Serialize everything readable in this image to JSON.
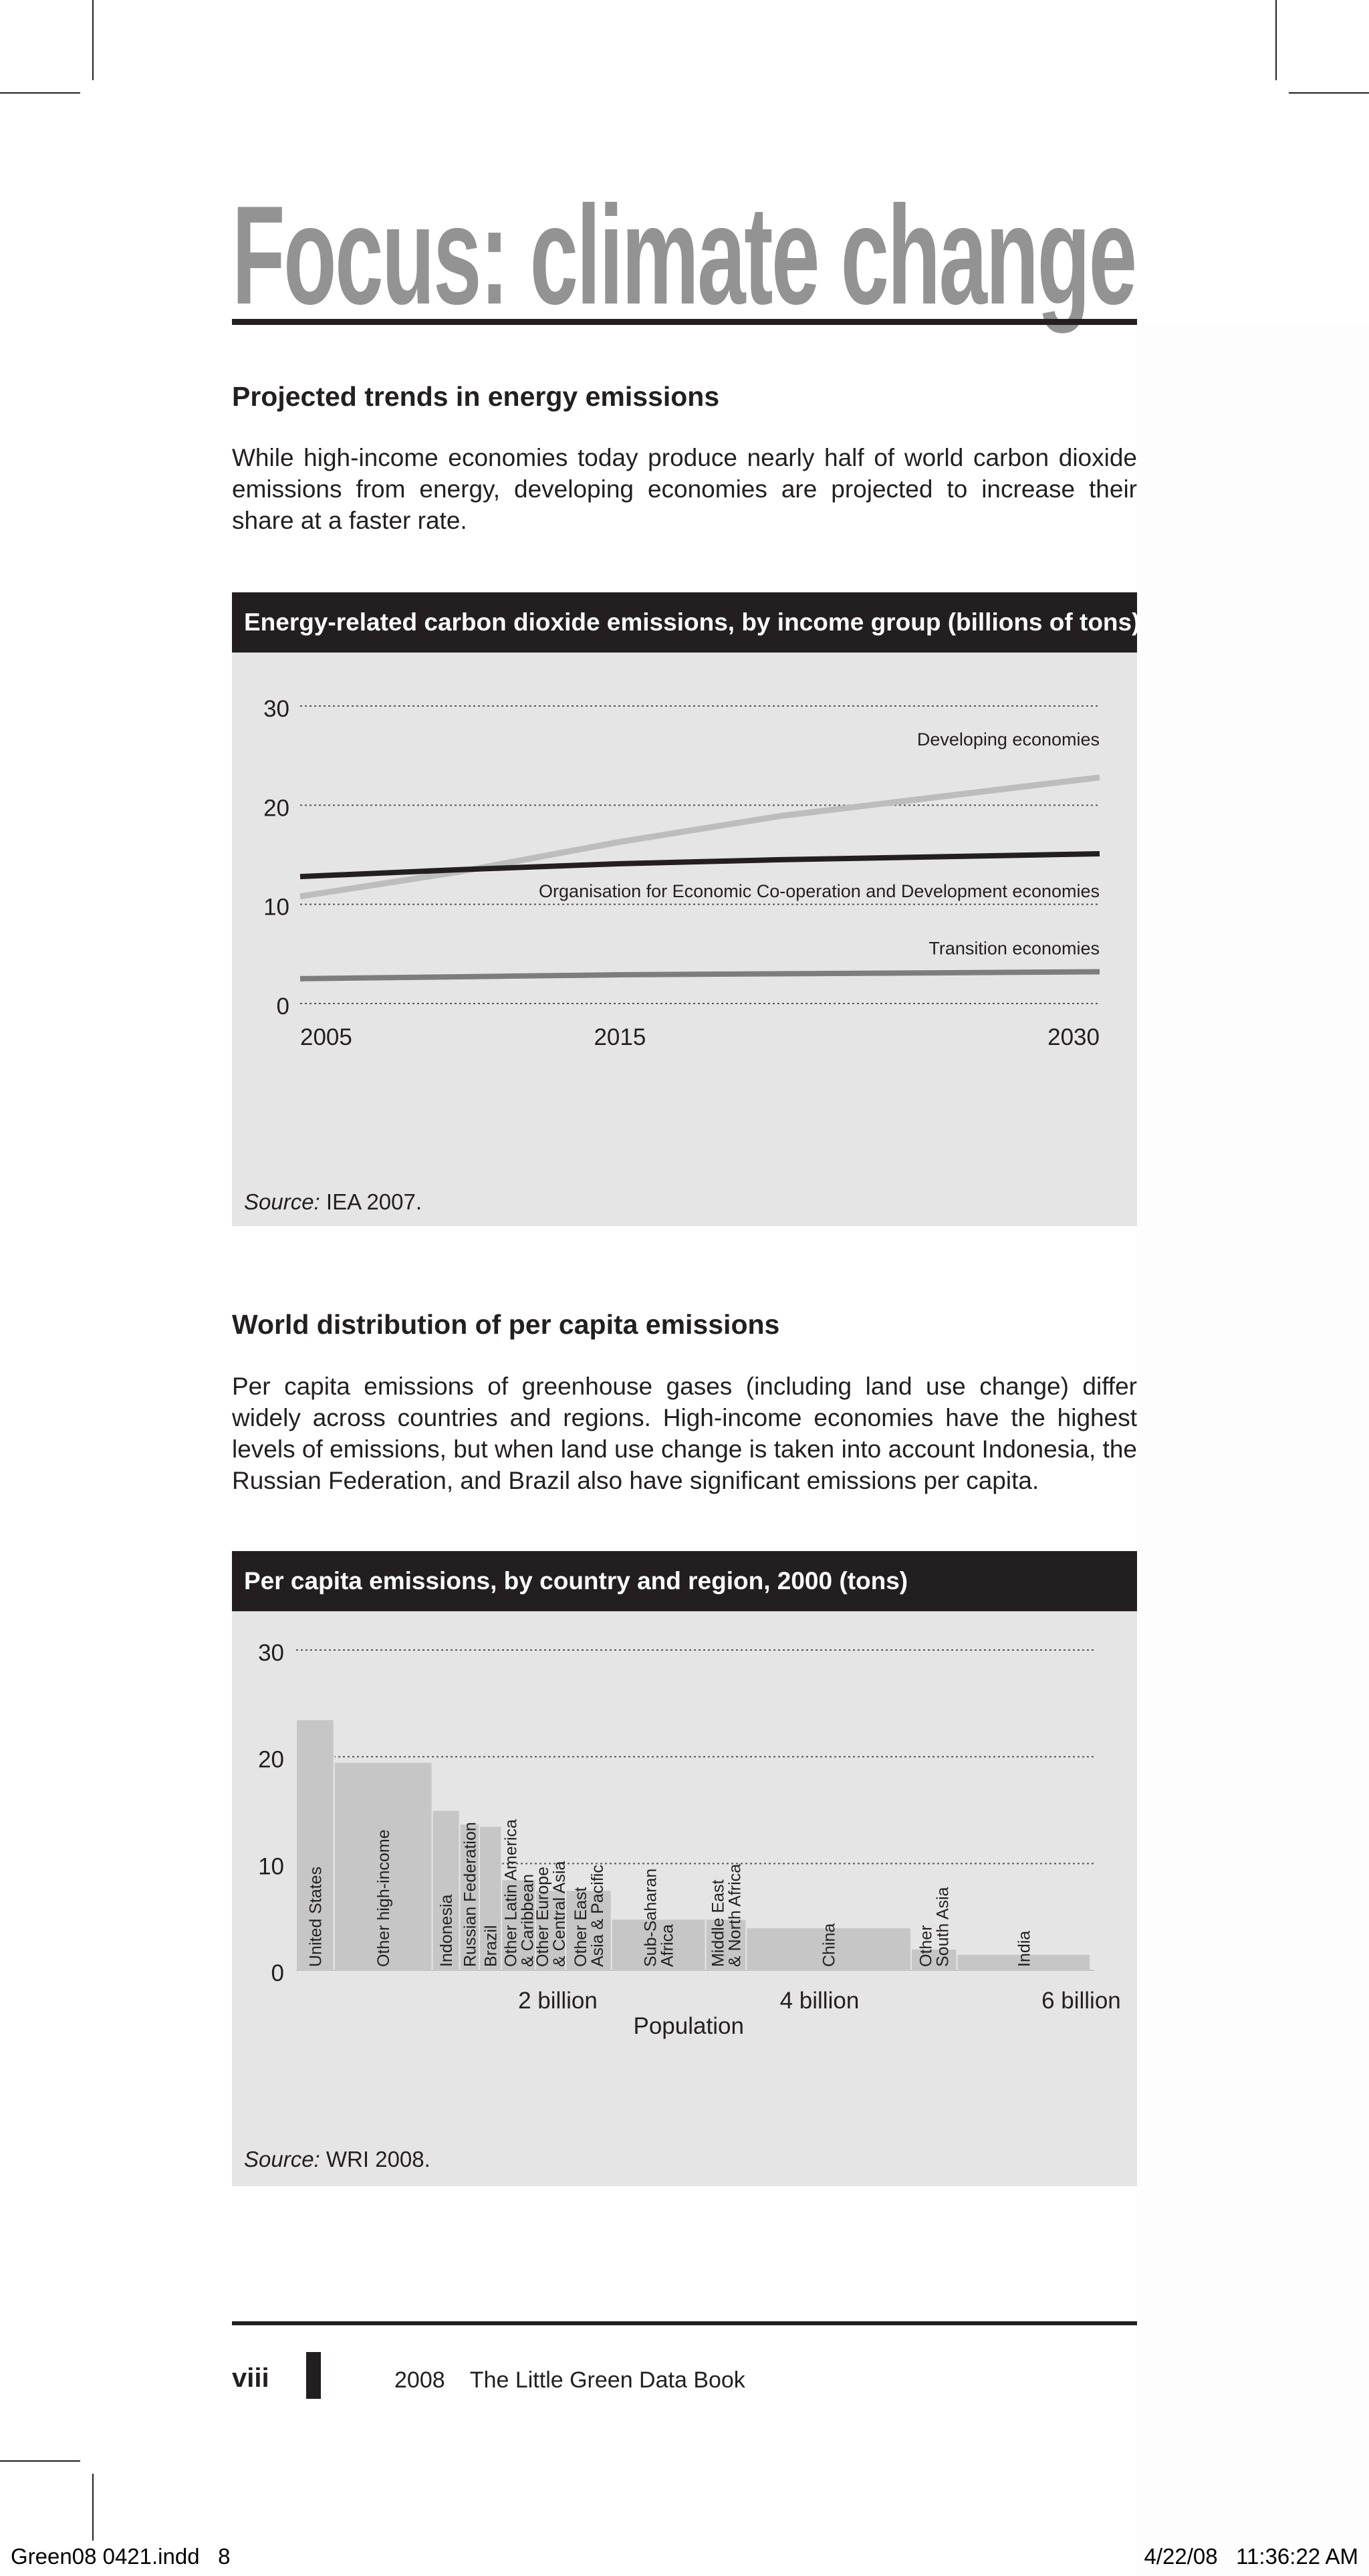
{
  "page": {
    "title": "Focus: climate change",
    "section1": {
      "heading": "Projected trends in energy emissions",
      "body": "While high-income economies today produce nearly half of world carbon dioxide emissions from energy, developing economies are projected to increase their share at a faster rate."
    },
    "section2": {
      "heading": "World distribution of per capita emissions",
      "body": "Per capita emissions of greenhouse gases (including land use change) differ widely across countries and regions. High-income economies have the highest levels of emissions, but when land use change is taken into account Indonesia, the Russian Federation, and Brazil also have significant emissions per capita."
    },
    "footer": {
      "folio": "viii",
      "book": "2008    The Little Green Data Book"
    },
    "slug": {
      "left": "Green08 0421.indd   8",
      "right": "4/22/08   11:36:22 AM"
    }
  },
  "chart_data": [
    {
      "type": "line",
      "title": "Energy-related carbon dioxide emissions, by income group (billions of tons)",
      "x": [
        2005,
        2010,
        2015,
        2020,
        2030
      ],
      "xticks": [
        "2005",
        "2015",
        "2030"
      ],
      "yticks": [
        "0",
        "10",
        "20",
        "30"
      ],
      "ylim": [
        0,
        30
      ],
      "grid": true,
      "series": [
        {
          "name": "Developing economies",
          "color": "#bdbdbd",
          "values": [
            10.8,
            13.3,
            16.3,
            18.9,
            22.8
          ]
        },
        {
          "name": "Organisation for Economic Co-operation and Development economies",
          "color": "#231f20",
          "values": [
            12.8,
            13.5,
            14.1,
            14.5,
            15.1
          ]
        },
        {
          "name": "Transition economies",
          "color": "#7d7d7d",
          "values": [
            2.5,
            2.7,
            2.9,
            3.0,
            3.2
          ]
        }
      ],
      "source_label": "Source:",
      "source": "IEA 2007."
    },
    {
      "type": "bar",
      "title": "Per capita emissions, by country and region, 2000 (tons)",
      "xlabel": "Population",
      "xticks": [
        "2 billion",
        "4 billion",
        "6 billion"
      ],
      "xtick_values": [
        2,
        4,
        6
      ],
      "xlim": [
        0,
        6.1
      ],
      "yticks": [
        "0",
        "10",
        "20",
        "30"
      ],
      "ylim": [
        0,
        30
      ],
      "grid": true,
      "bar_color": "#c6c6c6",
      "categories": [
        "United States",
        "Other high-income",
        "Indonesia",
        "Russian Federation",
        "Brazil",
        "Other Latin America & Caribbean",
        "Other Europe & Central Asia",
        "Other East Asia & Pacific",
        "Sub-Saharan Africa",
        "Middle East & North Africa",
        "China",
        "Other South Asia",
        "India"
      ],
      "label_lines": [
        [
          "United States"
        ],
        [
          "Other high-income"
        ],
        [
          "Indonesia"
        ],
        [
          "Russian Federation"
        ],
        [
          "Brazil"
        ],
        [
          "Other Latin America",
          "& Caribbean"
        ],
        [
          "Other Europe",
          "& Central Asia"
        ],
        [
          "Other East",
          "Asia & Pacific"
        ],
        [
          "Sub-Saharan",
          "Africa"
        ],
        [
          "Middle East",
          "& North Africa"
        ],
        [
          "China"
        ],
        [
          "Other",
          "South Asia"
        ],
        [
          "India"
        ]
      ],
      "population_billions": [
        0.29,
        0.75,
        0.21,
        0.15,
        0.17,
        0.26,
        0.23,
        0.35,
        0.72,
        0.31,
        1.26,
        0.35,
        1.02
      ],
      "values": [
        23.5,
        19.5,
        15.0,
        13.7,
        13.5,
        8.5,
        7.5,
        7.5,
        4.8,
        4.8,
        4.0,
        2.0,
        1.5
      ],
      "source_label": "Source:",
      "source": "WRI 2008."
    }
  ]
}
